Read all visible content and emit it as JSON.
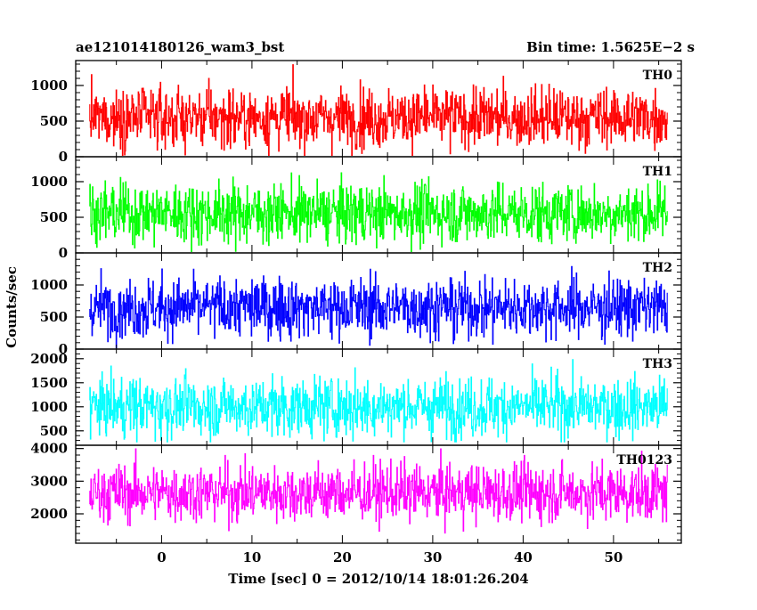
{
  "header": {
    "source_name": "ae121014180126_wam3_bst",
    "bin_time": "Bin time: 1.5625E−2 s"
  },
  "chart_data": {
    "type": "line",
    "style": "histogram-step",
    "xlabel": "Time [sec] 0 = 2012/10/14 18:01:26.204",
    "ylabel": "Counts/sec",
    "xlim": [
      -9.5,
      57.5
    ],
    "x_data_range": [
      -8.0,
      56.0
    ],
    "bin_time": 0.015625,
    "x_ticks": [
      0,
      10,
      20,
      30,
      40,
      50
    ],
    "x_tick_labels": [
      "0",
      "10",
      "20",
      "30",
      "40",
      "50"
    ],
    "grid": false,
    "legend": "none",
    "panels": [
      {
        "label": "TH0",
        "color": "#ff0000",
        "ylim": [
          0,
          1350
        ],
        "y_ticks": [
          0,
          500,
          1000
        ],
        "y_tick_labels": [
          "0",
          "500",
          "1000"
        ],
        "mean": 550,
        "typical_min": 50,
        "typical_max": 1300
      },
      {
        "label": "TH1",
        "color": "#00ff00",
        "ylim": [
          0,
          1350
        ],
        "y_ticks": [
          0,
          500,
          1000
        ],
        "y_tick_labels": [
          "0",
          "500",
          "1000"
        ],
        "mean": 560,
        "typical_min": 50,
        "typical_max": 1300
      },
      {
        "label": "TH2",
        "color": "#0000ff",
        "ylim": [
          0,
          1500
        ],
        "y_ticks": [
          0,
          500,
          1000
        ],
        "y_tick_labels": [
          "0",
          "500",
          "1000"
        ],
        "mean": 650,
        "typical_min": 50,
        "typical_max": 1450
      },
      {
        "label": "TH3",
        "color": "#00ffff",
        "ylim": [
          200,
          2200
        ],
        "y_ticks": [
          500,
          1000,
          1500,
          2000
        ],
        "y_tick_labels": [
          "500",
          "1000",
          "1500",
          "2000"
        ],
        "mean": 1000,
        "typical_min": 300,
        "typical_max": 2150
      },
      {
        "label": "TH0123",
        "color": "#ff00ff",
        "ylim": [
          1100,
          4100
        ],
        "y_ticks": [
          2000,
          3000,
          4000
        ],
        "y_tick_labels": [
          "2000",
          "3000",
          "4000"
        ],
        "mean": 2650,
        "typical_min": 1300,
        "typical_max": 3950
      }
    ]
  }
}
